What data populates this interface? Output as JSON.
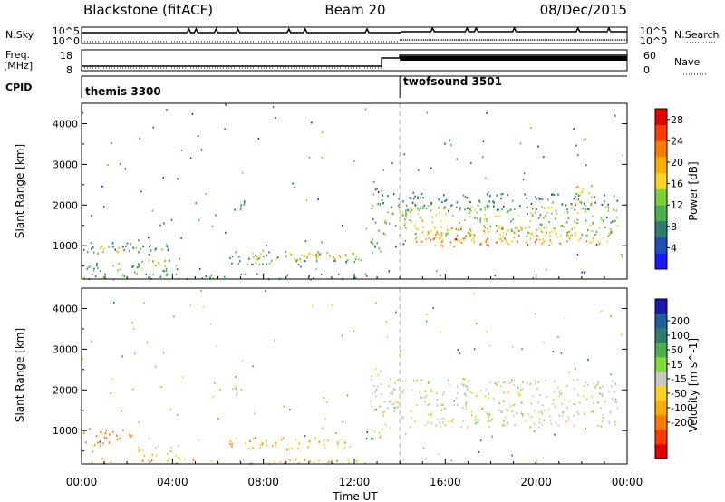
{
  "header": {
    "station": "Blackstone (fitACF)",
    "beam": "Beam 20",
    "date": "08/Dec/2015"
  },
  "summary": {
    "nsky_label": "N.Sky",
    "nsearch_label": "N.Search",
    "nsky_ticks": [
      "10^5",
      "10^0"
    ],
    "nsearch_ticks": [
      "10^5",
      "10^0"
    ],
    "freq_label": "Freq.",
    "freq_unit": "[MHz]",
    "freq_ticks": [
      "18",
      "8"
    ],
    "nave_label": "Nave",
    "nave_ticks": [
      "60",
      "0"
    ],
    "cpid_label": "CPID",
    "cpid_segments": [
      {
        "name": "themis 3300",
        "start_hour": 0
      },
      {
        "name": "twofsound 3501",
        "start_hour": 14
      }
    ]
  },
  "chart_data": [
    {
      "type": "heatmap",
      "panel": "power",
      "ylabel": "Slant Range [km]",
      "xlabel": "",
      "x_range_hours": [
        0,
        24
      ],
      "ylim": [
        180,
        4500
      ],
      "ytick_values": [
        1000,
        2000,
        3000,
        4000
      ],
      "ytick_labels": [
        "1000",
        "2000",
        "3000",
        "4000"
      ],
      "colorbar": {
        "label": "Power [dB]",
        "tick_labels": [
          "4",
          "8",
          "12",
          "16",
          "20",
          "24",
          "28"
        ],
        "range": [
          0,
          30
        ],
        "colors": [
          "#1a1aff",
          "#1f4fb8",
          "#2e7d6e",
          "#4caf50",
          "#7fcf3a",
          "#ffd21f",
          "#ffae00",
          "#ff7a00",
          "#ff3c00",
          "#e60000"
        ]
      },
      "mode_change_hour": 14,
      "regions": [
        {
          "t0": 0.0,
          "t1": 3.8,
          "r0": 800,
          "r1": 1100,
          "level": 9
        },
        {
          "t0": 0.8,
          "t1": 2.5,
          "r0": 850,
          "r1": 1000,
          "level": 17
        },
        {
          "t0": 2.5,
          "t1": 4.5,
          "r0": 400,
          "r1": 700,
          "level": 12
        },
        {
          "t0": 3.0,
          "t1": 4.0,
          "r0": 500,
          "r1": 620,
          "level": 19
        },
        {
          "t0": 0.0,
          "t1": 2.5,
          "r0": 300,
          "r1": 600,
          "level": 10
        },
        {
          "t0": 6.5,
          "t1": 12.3,
          "r0": 550,
          "r1": 900,
          "level": 11
        },
        {
          "t0": 7.5,
          "t1": 12.0,
          "r0": 650,
          "r1": 850,
          "level": 19
        },
        {
          "t0": 0.0,
          "t1": 13.0,
          "r0": 200,
          "r1": 330,
          "level": 9
        },
        {
          "t0": 9.3,
          "t1": 10.5,
          "r0": 190,
          "r1": 240,
          "level": 27
        },
        {
          "t0": 12.7,
          "t1": 13.2,
          "r0": 800,
          "r1": 2600,
          "level": 10
        },
        {
          "t0": 13.2,
          "t1": 23.6,
          "r0": 1900,
          "r1": 2300,
          "level": 7
        },
        {
          "t0": 13.3,
          "t1": 23.6,
          "r0": 1250,
          "r1": 2000,
          "level": 13
        },
        {
          "t0": 14.0,
          "t1": 23.3,
          "r0": 1050,
          "r1": 1500,
          "level": 19
        },
        {
          "t0": 15.0,
          "t1": 20.0,
          "r0": 1000,
          "r1": 1200,
          "level": 24
        },
        {
          "t0": 21.5,
          "t1": 22.5,
          "r0": 2000,
          "r1": 2500,
          "level": 20
        },
        {
          "t0": 23.7,
          "t1": 24.0,
          "r0": 700,
          "r1": 900,
          "level": 10
        },
        {
          "t0": 6.5,
          "t1": 7.2,
          "r0": 1800,
          "r1": 2200,
          "level": 8
        }
      ]
    },
    {
      "type": "heatmap",
      "panel": "velocity",
      "ylabel": "Slant Range [km]",
      "xlabel": "Time UT",
      "x_range_hours": [
        0,
        24
      ],
      "xtick_hours": [
        0,
        4,
        8,
        12,
        16,
        20,
        24
      ],
      "xtick_labels": [
        "00:00",
        "04:00",
        "08:00",
        "12:00",
        "16:00",
        "20:00",
        "00:00"
      ],
      "ylim": [
        180,
        4500
      ],
      "ytick_values": [
        1000,
        2000,
        3000,
        4000
      ],
      "ytick_labels": [
        "1000",
        "2000",
        "3000",
        "4000"
      ],
      "colorbar": {
        "label": "Velocity [m s^-1]",
        "tick_labels": [
          "200",
          "100",
          "50",
          "15",
          "-15",
          "-50",
          "-100",
          "-200"
        ],
        "colors": [
          "#1a1ab0",
          "#1f5fa0",
          "#2e7d6e",
          "#4caf50",
          "#7fdd3a",
          "#c8c8c0",
          "#ffd21f",
          "#ffae00",
          "#ff7a00",
          "#ff3c00",
          "#e60000"
        ]
      },
      "mode_change_hour": 14,
      "regions": [
        {
          "t0": 0.0,
          "t1": 2.2,
          "r0": 650,
          "r1": 1100,
          "vel": -75
        },
        {
          "t0": 2.2,
          "t1": 4.5,
          "r0": 350,
          "r1": 650,
          "vel": -25
        },
        {
          "t0": 6.5,
          "t1": 12.3,
          "r0": 550,
          "r1": 850,
          "vel": -35
        },
        {
          "t0": 0.0,
          "t1": 13.0,
          "r0": 200,
          "r1": 330,
          "vel": -30
        },
        {
          "t0": 12.7,
          "t1": 13.2,
          "r0": 800,
          "r1": 2600,
          "vel": 0
        },
        {
          "t0": 13.2,
          "t1": 23.6,
          "r0": 1100,
          "r1": 2300,
          "vel": 0
        },
        {
          "t0": 6.5,
          "t1": 7.2,
          "r0": 1800,
          "r1": 2200,
          "vel": 0
        },
        {
          "t0": 12.4,
          "t1": 12.8,
          "r0": 700,
          "r1": 1000,
          "vel": 60
        }
      ]
    }
  ]
}
